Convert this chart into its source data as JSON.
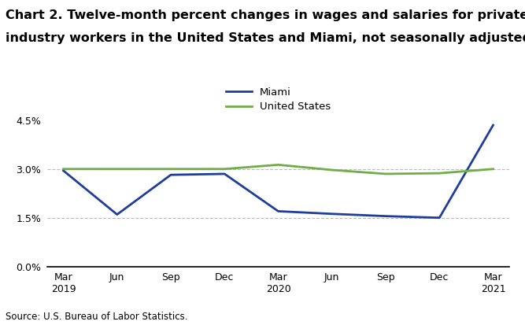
{
  "title_line1": "Chart 2. Twelve-month percent changes in wages and salaries for private",
  "title_line2": "industry workers in the United States and Miami, not seasonally adjusted",
  "x_labels": [
    "Mar\n2019",
    "Jun",
    "Sep",
    "Dec",
    "Mar\n2020",
    "Jun",
    "Sep",
    "Dec",
    "Mar\n2021"
  ],
  "miami_values": [
    2.95,
    1.6,
    2.82,
    2.85,
    1.7,
    1.62,
    1.55,
    1.5,
    4.35
  ],
  "us_values": [
    3.0,
    3.0,
    3.0,
    3.0,
    3.13,
    2.97,
    2.85,
    2.87,
    3.0
  ],
  "miami_color": "#1f3d99",
  "us_color": "#70ad47",
  "ytick_labels": [
    "0.0%",
    "1.5%",
    "3.0%",
    "4.5%"
  ],
  "ytick_values": [
    0.0,
    1.5,
    3.0,
    4.5
  ],
  "ymax": 5.0,
  "grid_color": "#bbbbbb",
  "background_color": "#ffffff",
  "source_text": "Source: U.S. Bureau of Labor Statistics.",
  "legend_miami": "Miami",
  "legend_us": "United States",
  "title_fontsize": 11.5,
  "axis_fontsize": 9,
  "legend_fontsize": 9.5,
  "line_width": 2.0
}
